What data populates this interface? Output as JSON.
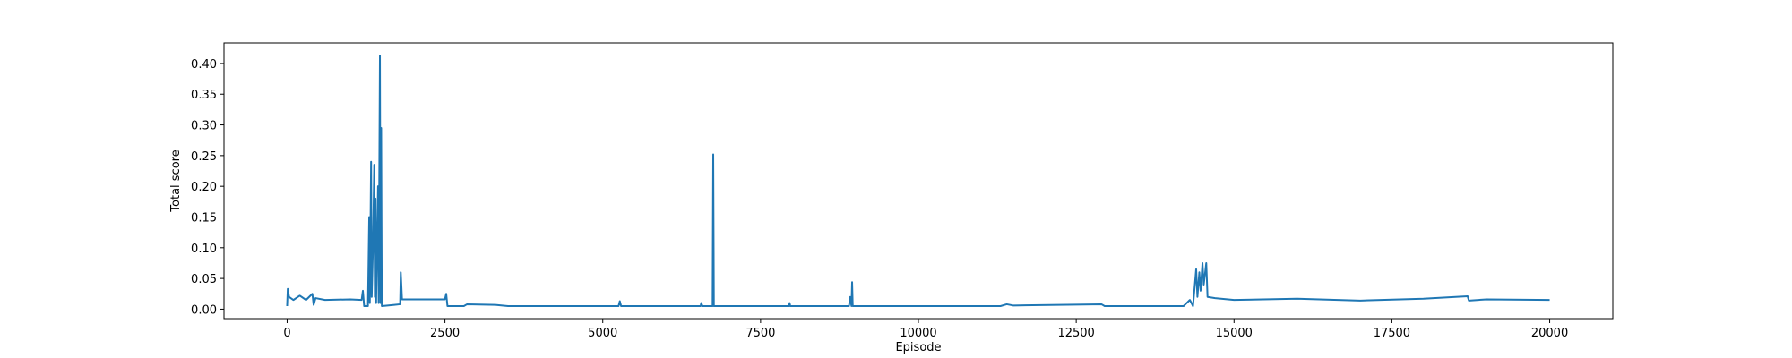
{
  "chart_data": {
    "type": "line",
    "x_label": "Episode",
    "y_label": "Total score",
    "x": [
      0,
      10,
      30,
      100,
      200,
      300,
      400,
      420,
      450,
      600,
      1000,
      1180,
      1200,
      1220,
      1280,
      1300,
      1310,
      1330,
      1340,
      1360,
      1380,
      1390,
      1400,
      1410,
      1440,
      1450,
      1470,
      1480,
      1490,
      1500,
      1700,
      1790,
      1800,
      1820,
      2000,
      2500,
      2520,
      2540,
      2800,
      2850,
      3300,
      3500,
      5250,
      5270,
      5290,
      6550,
      6560,
      6580,
      6740,
      6750,
      6760,
      7950,
      7960,
      7970,
      8900,
      8920,
      8940,
      8950,
      8960,
      11300,
      11400,
      11500,
      12900,
      12950,
      14200,
      14300,
      14350,
      14400,
      14420,
      14450,
      14470,
      14500,
      14520,
      14560,
      14580,
      14700,
      15000,
      16000,
      17000,
      18000,
      18700,
      18720,
      19000,
      20000
    ],
    "series": [
      {
        "color": "#1f77b4",
        "values": [
          0.005,
          0.033,
          0.02,
          0.015,
          0.022,
          0.015,
          0.025,
          0.007,
          0.018,
          0.015,
          0.016,
          0.015,
          0.03,
          0.005,
          0.005,
          0.15,
          0.01,
          0.24,
          0.02,
          0.1,
          0.235,
          0.02,
          0.18,
          0.01,
          0.2,
          0.01,
          0.413,
          0.01,
          0.295,
          0.005,
          0.007,
          0.008,
          0.06,
          0.016,
          0.016,
          0.016,
          0.025,
          0.005,
          0.005,
          0.008,
          0.007,
          0.005,
          0.005,
          0.013,
          0.005,
          0.005,
          0.01,
          0.005,
          0.005,
          0.252,
          0.005,
          0.005,
          0.01,
          0.005,
          0.005,
          0.02,
          0.005,
          0.044,
          0.005,
          0.005,
          0.008,
          0.006,
          0.008,
          0.005,
          0.005,
          0.015,
          0.005,
          0.065,
          0.02,
          0.06,
          0.03,
          0.075,
          0.04,
          0.075,
          0.02,
          0.018,
          0.015,
          0.017,
          0.014,
          0.017,
          0.021,
          0.014,
          0.016,
          0.015
        ]
      }
    ],
    "xlim": [
      -1000,
      21000
    ],
    "ylim": [
      -0.0154,
      0.4334
    ],
    "xticks": [
      0,
      2500,
      5000,
      7500,
      10000,
      12500,
      15000,
      17500,
      20000
    ],
    "yticks": [
      {
        "value": 0,
        "label": "0.00"
      },
      {
        "value": 0.05,
        "label": "0.05"
      },
      {
        "value": 0.1,
        "label": "0.10"
      },
      {
        "value": 0.15,
        "label": "0.15"
      },
      {
        "value": 0.2,
        "label": "0.20"
      },
      {
        "value": 0.25,
        "label": "0.25"
      },
      {
        "value": 0.3,
        "label": "0.30"
      },
      {
        "value": 0.35,
        "label": "0.35"
      },
      {
        "value": 0.4,
        "label": "0.40"
      }
    ],
    "grid": false
  }
}
